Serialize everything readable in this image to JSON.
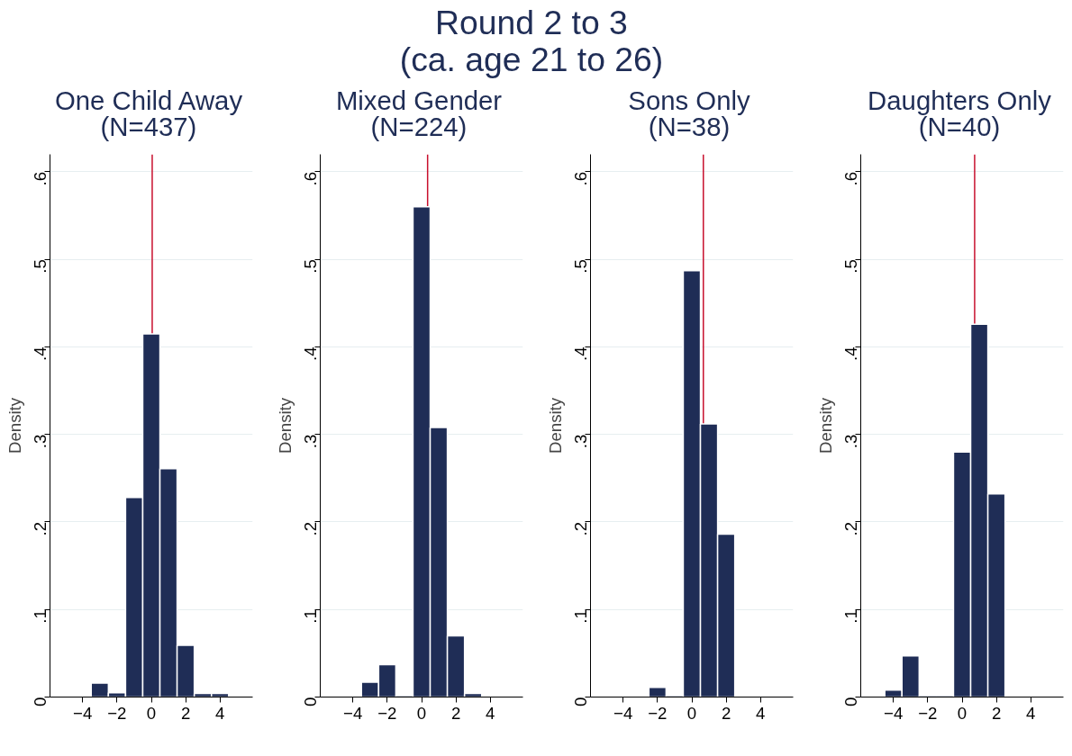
{
  "chart_data": [
    {
      "type": "histogram",
      "title": "One Child Away\n(N=437)",
      "ylabel": "Density",
      "annotations": [
        "Round 2 to 3\n(ca. age 21 to 26)"
      ],
      "color": "#1f2d56",
      "bins": [
        -3.5,
        -2.5,
        -1.5,
        -0.5,
        0.5,
        1.5,
        2.5,
        3.5,
        4.5
      ],
      "values": [
        0.016,
        0.005,
        0.228,
        0.415,
        0.261,
        0.059,
        0.004,
        0.004
      ],
      "xlim": [
        -5.9,
        5.9
      ],
      "ylim": [
        0,
        0.62
      ],
      "xticks": [
        -4,
        -2,
        0,
        2,
        4
      ],
      "yticks": [
        0,
        {
          "value": 0.1,
          "label": ".1"
        },
        {
          "value": 0.2,
          "label": ".2"
        },
        {
          "value": 0.3,
          "label": ".3"
        },
        {
          "value": 0.4,
          "label": ".4"
        },
        {
          "value": 0.5,
          "label": ".5"
        },
        {
          "value": 0.6,
          "label": ".6"
        }
      ],
      "grid": "y",
      "ref_lines": [
        {
          "axis": "x",
          "value": 0.05,
          "color": "#c8102e"
        }
      ]
    },
    {
      "type": "histogram",
      "title": "Mixed Gender\n(N=224)",
      "ylabel": "Density",
      "color": "#1f2d56",
      "bins": [
        -3.5,
        -2.5,
        -1.5,
        -0.5,
        0.5,
        1.5,
        2.5,
        3.5
      ],
      "values": [
        0.017,
        0.037,
        0,
        0.56,
        0.308,
        0.07,
        0.004
      ],
      "xlim": [
        -5.9,
        5.9
      ],
      "ylim": [
        0,
        0.62
      ],
      "xticks": [
        -4,
        -2,
        0,
        2,
        4
      ],
      "yticks": [
        0,
        {
          "value": 0.1,
          "label": ".1"
        },
        {
          "value": 0.2,
          "label": ".2"
        },
        {
          "value": 0.3,
          "label": ".3"
        },
        {
          "value": 0.4,
          "label": ".4"
        },
        {
          "value": 0.5,
          "label": ".5"
        },
        {
          "value": 0.6,
          "label": ".6"
        }
      ],
      "grid": "y",
      "ref_lines": [
        {
          "axis": "x",
          "value": 0.35,
          "color": "#c8102e"
        }
      ]
    },
    {
      "type": "histogram",
      "title": "Sons Only\n(N=38)",
      "ylabel": "Density",
      "color": "#1f2d56",
      "bins": [
        -2.5,
        -1.5,
        -0.5,
        0.5,
        1.5,
        2.5
      ],
      "values": [
        0.011,
        0,
        0.487,
        0.312,
        0.186
      ],
      "xlim": [
        -5.9,
        5.9
      ],
      "ylim": [
        0,
        0.62
      ],
      "xticks": [
        -4,
        -2,
        0,
        2,
        4
      ],
      "yticks": [
        0,
        {
          "value": 0.1,
          "label": ".1"
        },
        {
          "value": 0.2,
          "label": ".2"
        },
        {
          "value": 0.3,
          "label": ".3"
        },
        {
          "value": 0.4,
          "label": ".4"
        },
        {
          "value": 0.5,
          "label": ".5"
        },
        {
          "value": 0.6,
          "label": ".6"
        }
      ],
      "grid": "y",
      "ref_lines": [
        {
          "axis": "x",
          "value": 0.67,
          "color": "#c8102e"
        }
      ]
    },
    {
      "type": "histogram",
      "title": "Daughters Only\n(N=40)",
      "ylabel": "Density",
      "color": "#1f2d56",
      "bins": [
        -4.5,
        -3.5,
        -2.5,
        -1.5,
        -0.5,
        0.5,
        1.5,
        2.5
      ],
      "values": [
        0.008,
        0.047,
        0,
        0,
        0.28,
        0.426,
        0.232
      ],
      "xlim": [
        -5.9,
        5.9
      ],
      "ylim": [
        0,
        0.62
      ],
      "xticks": [
        -4,
        -2,
        0,
        2,
        4
      ],
      "yticks": [
        0,
        {
          "value": 0.1,
          "label": ".1"
        },
        {
          "value": 0.2,
          "label": ".2"
        },
        {
          "value": 0.3,
          "label": ".3"
        },
        {
          "value": 0.4,
          "label": ".4"
        },
        {
          "value": 0.5,
          "label": ".5"
        },
        {
          "value": 0.6,
          "label": ".6"
        }
      ],
      "grid": "y",
      "ref_lines": [
        {
          "axis": "x",
          "value": 0.73,
          "color": "#c8102e"
        }
      ]
    }
  ]
}
